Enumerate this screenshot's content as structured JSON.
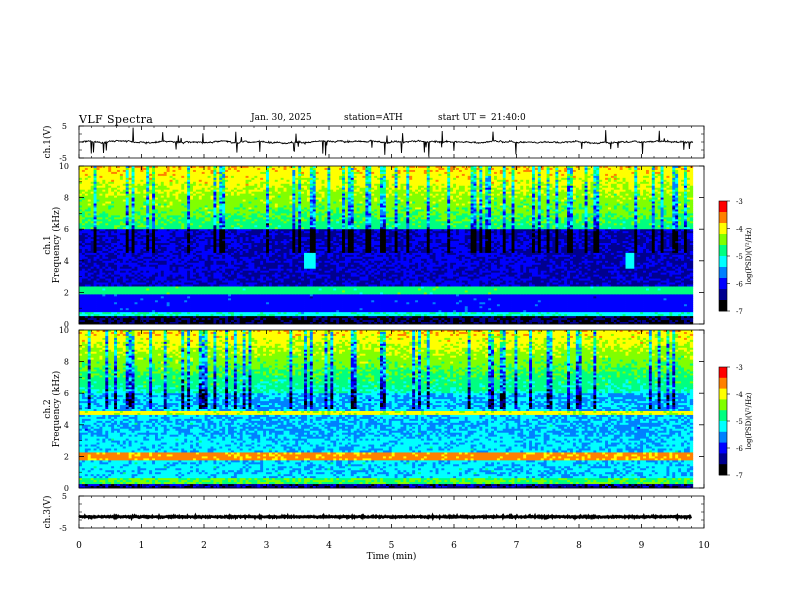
{
  "header": {
    "title": "VLF Spectra",
    "date": "Jan. 30, 2025",
    "station": "station=ATH",
    "start_label": "start UT =",
    "start_value": "21:40:0"
  },
  "chart_data": [
    {
      "id": "ch1-waveform",
      "type": "line",
      "ylabel": "ch.1(V)",
      "ylim": [
        -5,
        5
      ],
      "y_ticks": [
        "5",
        "-5"
      ],
      "baseline": 0,
      "xlim": [
        0,
        10
      ],
      "trace_color": "#000000"
    },
    {
      "id": "ch1-spectrogram",
      "type": "heatmap",
      "ylabel": "ch.1",
      "ylabel2": "Frequency (kHz)",
      "ylim": [
        0,
        10
      ],
      "y_ticks": [
        "0",
        "2",
        "4",
        "6",
        "8",
        "10"
      ],
      "xlim": [
        0,
        10
      ],
      "colorbar": {
        "label": "log(PSD)(V²/Hz)",
        "range": [
          -7,
          -3
        ],
        "ticks": [
          "-3",
          "-4",
          "-5",
          "-6",
          "-7"
        ]
      }
    },
    {
      "id": "ch2-spectrogram",
      "type": "heatmap",
      "ylabel": "ch.2",
      "ylabel2": "Frequency (kHz)",
      "ylim": [
        0,
        10
      ],
      "y_ticks": [
        "0",
        "2",
        "4",
        "6",
        "8",
        "10"
      ],
      "xlim": [
        0,
        10
      ],
      "colorbar": {
        "label": "log(PSD)(V²/Hz)",
        "range": [
          -7,
          -3
        ],
        "ticks": [
          "-3",
          "-4",
          "-5",
          "-6",
          "-7"
        ]
      }
    },
    {
      "id": "ch3-waveform",
      "type": "line",
      "ylabel": "ch.3(V)",
      "ylim": [
        -5,
        5
      ],
      "y_ticks": [
        "5",
        "-5"
      ],
      "baseline": -1.5,
      "xlim": [
        0,
        10
      ],
      "xlabel": "Time (min)",
      "x_ticks": [
        "0",
        "1",
        "2",
        "3",
        "4",
        "5",
        "6",
        "7",
        "8",
        "9",
        "10"
      ],
      "data_end": 9.8,
      "trace_color": "#000000"
    }
  ],
  "colors": {
    "colormap": [
      "#000000",
      "#00008f",
      "#0000ff",
      "#0080ff",
      "#00ffff",
      "#00ff80",
      "#80ff00",
      "#ffff00",
      "#ff8000",
      "#ff0000",
      "#ffffff"
    ]
  }
}
